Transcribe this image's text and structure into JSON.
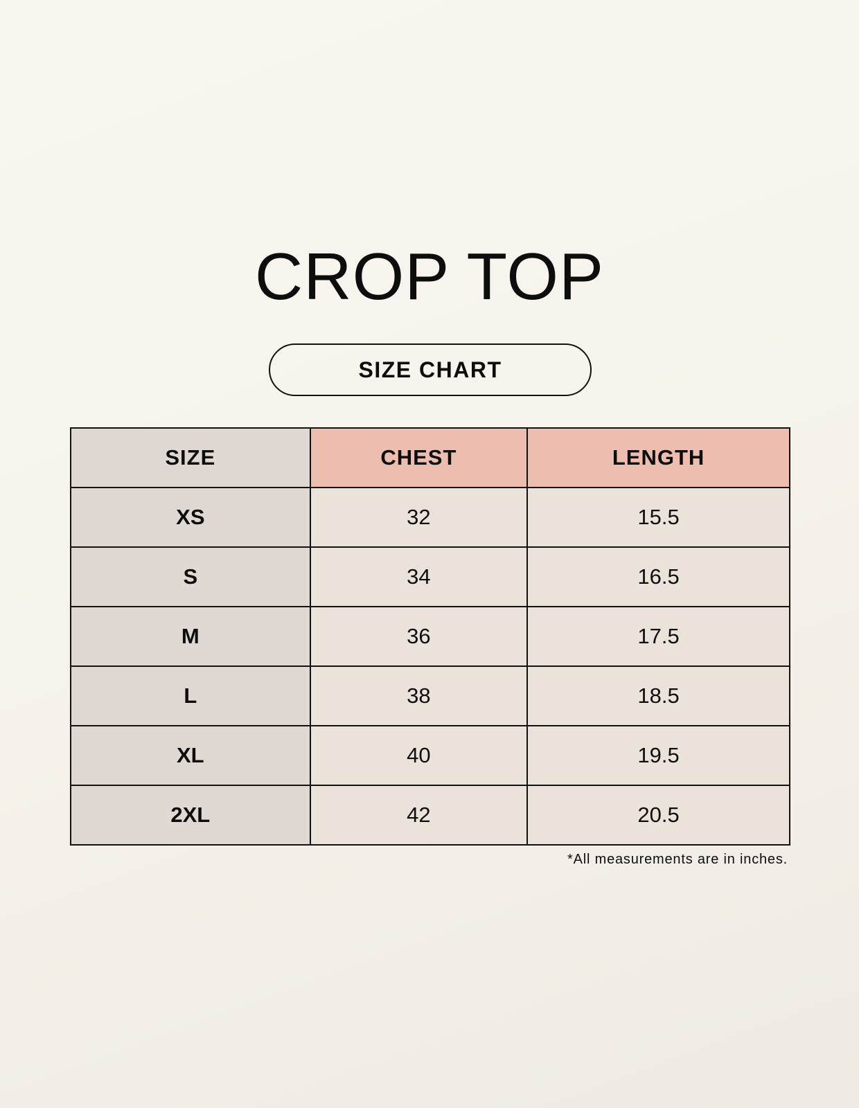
{
  "title": "CROP TOP",
  "subtitle": "SIZE CHART",
  "colors": {
    "size_column": "#e0d9d3",
    "header_accent": "#edbdb0",
    "value_cells": "#ebe3d9"
  },
  "table": {
    "headers": [
      "SIZE",
      "CHEST",
      "LENGTH"
    ],
    "rows": [
      [
        "XS",
        "32",
        "15.5"
      ],
      [
        "S",
        "34",
        "16.5"
      ],
      [
        "M",
        "36",
        "17.5"
      ],
      [
        "L",
        "38",
        "18.5"
      ],
      [
        "XL",
        "40",
        "19.5"
      ],
      [
        "2XL",
        "42",
        "20.5"
      ]
    ]
  },
  "footnote": "*All measurements are in inches."
}
